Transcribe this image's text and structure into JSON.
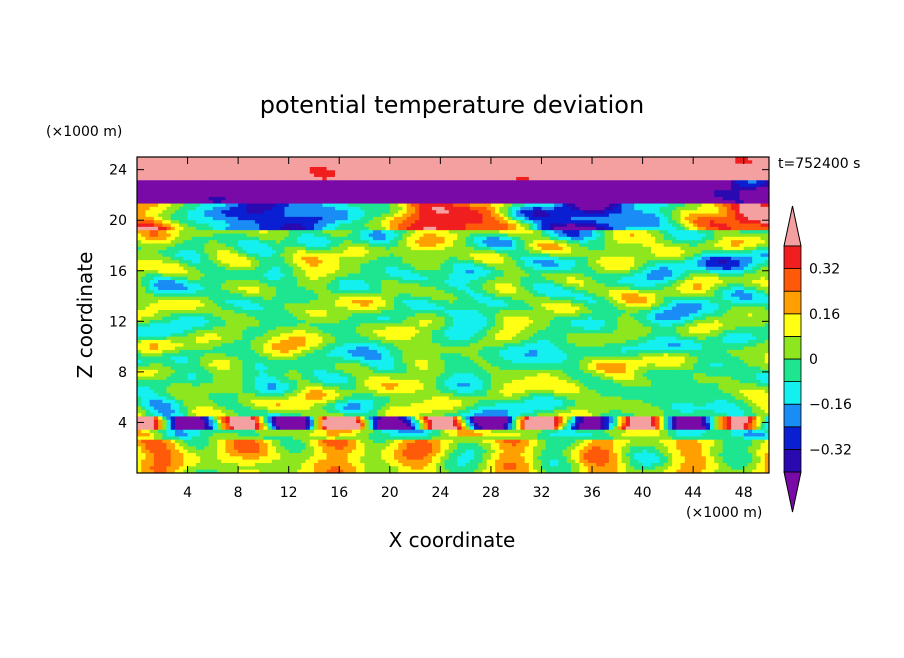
{
  "chart_data": {
    "type": "heatmap",
    "title": "potential temperature deviation",
    "xlabel": "X coordinate",
    "ylabel": "Z coordinate",
    "x_unit": "(×1000 m)",
    "y_unit": "(×1000 m)",
    "time_label": "t=752400 s",
    "xlim": [
      0,
      50
    ],
    "ylim": [
      0,
      25
    ],
    "x_ticks": [
      4,
      8,
      12,
      16,
      20,
      24,
      28,
      32,
      36,
      40,
      44,
      48
    ],
    "y_ticks": [
      4,
      8,
      12,
      16,
      20,
      24
    ],
    "x_tick_labels": [
      "4",
      "8",
      "12",
      "16",
      "20",
      "24",
      "28",
      "32",
      "36",
      "40",
      "44",
      "48"
    ],
    "y_tick_labels": [
      "4",
      "8",
      "12",
      "16",
      "20",
      "24"
    ],
    "colorbar": {
      "levels": [
        -0.4,
        -0.32,
        -0.24,
        -0.16,
        -0.08,
        0,
        0.08,
        0.16,
        0.24,
        0.32,
        0.4
      ],
      "labels": [
        "0.32",
        "0.16",
        "0",
        "−0.16",
        "−0.32"
      ],
      "label_values": [
        0.32,
        0.16,
        0,
        -0.16,
        -0.32
      ],
      "colors": [
        "#7a0aa8",
        "#2a0ab0",
        "#0a1ed2",
        "#1a8cf5",
        "#14f0f0",
        "#1ee690",
        "#8ee61e",
        "#ffff14",
        "#ffa000",
        "#ff5a0a",
        "#f01e1e",
        "#f5a0a0"
      ]
    }
  }
}
